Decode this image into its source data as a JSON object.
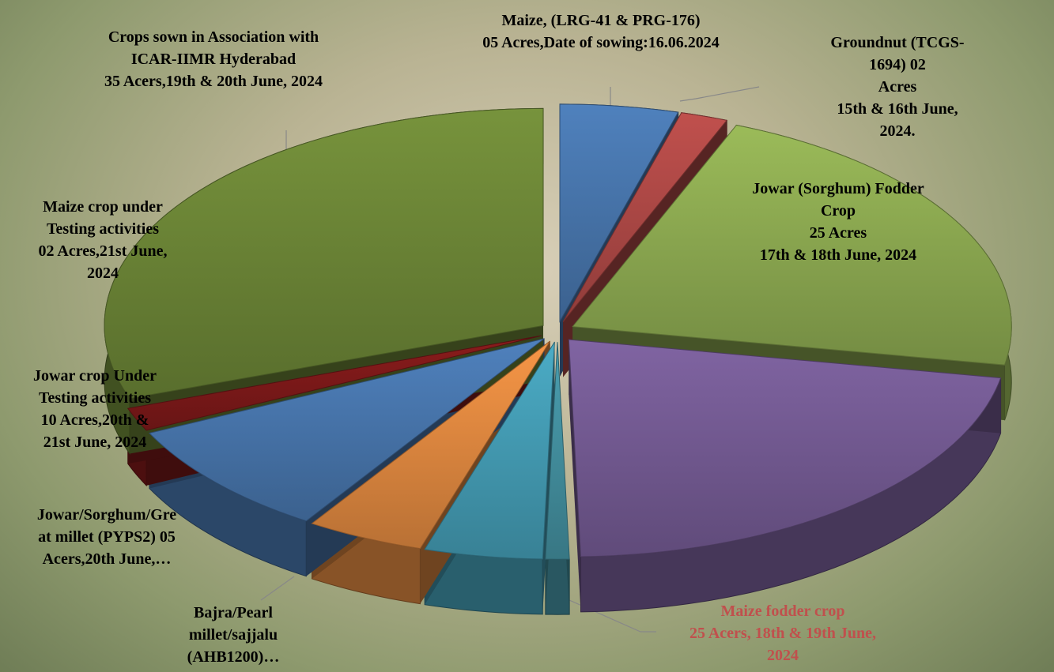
{
  "chart_data": {
    "type": "pie",
    "categories": [
      "Maize,  (LRG-41 & PRG-176)\n05 Acres,Date of sowing:16.06.2024",
      "Groundnut (TCGS-1694) 02\nAcres\n15th & 16th June, 2024.",
      "Jowar (Sorghum) Fodder\nCrop\n25 Acres\n17th & 18th June, 2024",
      "Maize fodder crop\n25 Acers, 18th & 19th June,\n2024",
      null,
      "Bajra/Pearl\nmillet/sajjalu\n(AHB1200)…",
      "Jowar/Sorghum/Gre\nat millet (PYPS2) 05\nAcers,20th June,…",
      "Jowar crop Under\nTesting activities\n10 Acres,20th &\n21st June, 2024",
      "Maize crop under\nTesting activities\n02 Acres,21st June,\n2024",
      "Crops sown in Association with\nICAR-IIMR Hyderabad\n35 Acers,19th & 20th June, 2024"
    ],
    "values": [
      5,
      2,
      25,
      25,
      1,
      5,
      5,
      10,
      2,
      35
    ],
    "colors": [
      "#4f81bd",
      "#c0504d",
      "#9bbb59",
      "#8064a2",
      "#4a9fb0",
      "#4bacc6",
      "#f79646",
      "#4f81bd",
      "#8b1c1c",
      "#77933c"
    ],
    "label_colors": [
      "#000000",
      "#000000",
      "#000000",
      "#c0504d",
      "#000000",
      "#000000",
      "#000000",
      "#000000",
      "#000000",
      "#000000"
    ]
  }
}
